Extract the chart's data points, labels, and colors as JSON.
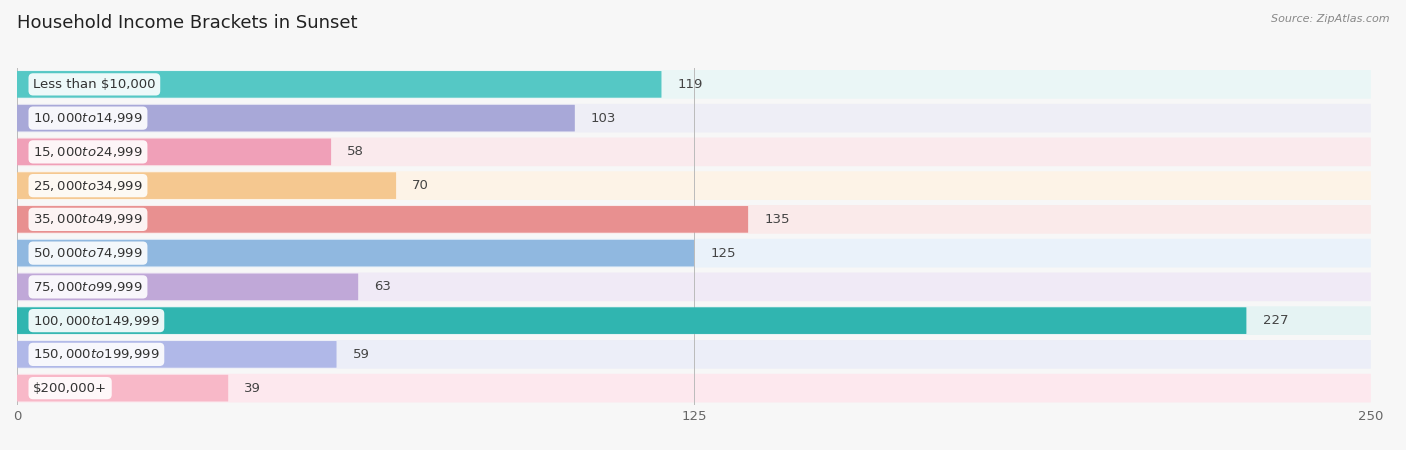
{
  "title": "Household Income Brackets in Sunset",
  "source": "Source: ZipAtlas.com",
  "categories": [
    "Less than $10,000",
    "$10,000 to $14,999",
    "$15,000 to $24,999",
    "$25,000 to $34,999",
    "$35,000 to $49,999",
    "$50,000 to $74,999",
    "$75,000 to $99,999",
    "$100,000 to $149,999",
    "$150,000 to $199,999",
    "$200,000+"
  ],
  "values": [
    119,
    103,
    58,
    70,
    135,
    125,
    63,
    227,
    59,
    39
  ],
  "bar_colors": [
    "#55c8c5",
    "#a8a8d8",
    "#f0a0b8",
    "#f5c890",
    "#e89090",
    "#90b8e0",
    "#c0a8d8",
    "#30b5b0",
    "#b0b8e8",
    "#f8b8c8"
  ],
  "row_bg_colors": [
    "#eaf6f6",
    "#eeeef6",
    "#faeaed",
    "#fdf3e7",
    "#faeaea",
    "#eaf2fa",
    "#f0eaf6",
    "#e5f3f3",
    "#eceef8",
    "#fde8ee"
  ],
  "xlim": [
    0,
    250
  ],
  "xticks": [
    0,
    125,
    250
  ],
  "title_fontsize": 13,
  "label_fontsize": 9.5,
  "value_fontsize": 9.5,
  "background_color": "#f7f7f7"
}
